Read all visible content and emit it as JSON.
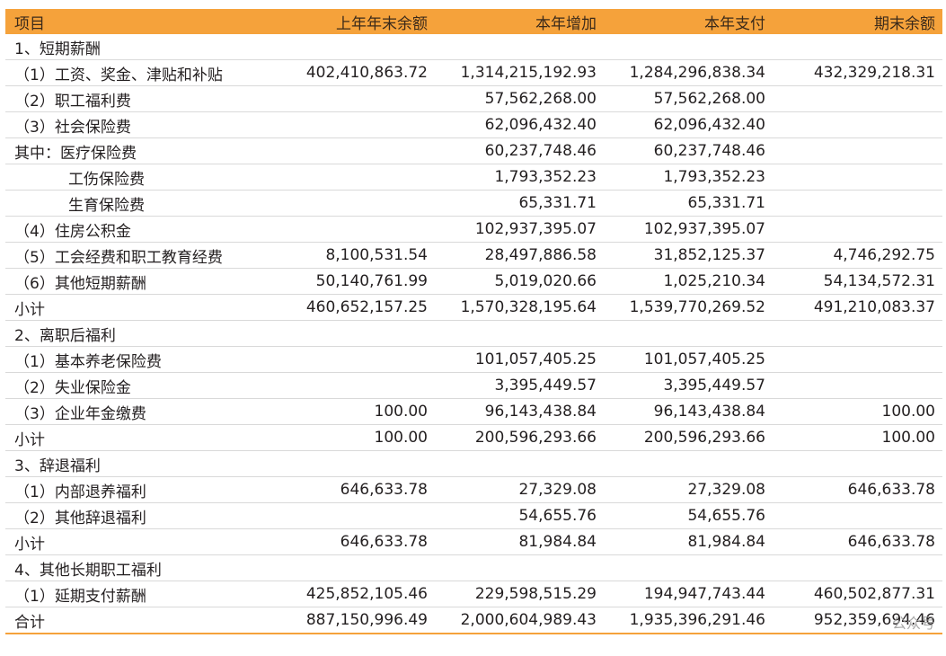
{
  "table": {
    "headers": [
      "项目",
      "上年年末余额",
      "本年增加",
      "本年支付",
      "期末余额"
    ],
    "rows": [
      {
        "label": "1、短期薪酬",
        "sub": false,
        "values": [
          "",
          "",
          "",
          ""
        ]
      },
      {
        "label": "（1）工资、奖金、津贴和补贴",
        "sub": false,
        "values": [
          "402,410,863.72",
          "1,314,215,192.93",
          "1,284,296,838.34",
          "432,329,218.31"
        ]
      },
      {
        "label": "（2）职工福利费",
        "sub": false,
        "values": [
          "",
          "57,562,268.00",
          "57,562,268.00",
          ""
        ]
      },
      {
        "label": "（3）社会保险费",
        "sub": false,
        "values": [
          "",
          "62,096,432.40",
          "62,096,432.40",
          ""
        ]
      },
      {
        "label": "其中：医疗保险费",
        "sub": false,
        "values": [
          "",
          "60,237,748.46",
          "60,237,748.46",
          ""
        ]
      },
      {
        "label": "工伤保险费",
        "sub": true,
        "values": [
          "",
          "1,793,352.23",
          "1,793,352.23",
          ""
        ]
      },
      {
        "label": "生育保险费",
        "sub": true,
        "values": [
          "",
          "65,331.71",
          "65,331.71",
          ""
        ]
      },
      {
        "label": "（4）住房公积金",
        "sub": false,
        "values": [
          "",
          "102,937,395.07",
          "102,937,395.07",
          ""
        ]
      },
      {
        "label": "（5）工会经费和职工教育经费",
        "sub": false,
        "values": [
          "8,100,531.54",
          "28,497,886.58",
          "31,852,125.37",
          "4,746,292.75"
        ]
      },
      {
        "label": "（6）其他短期薪酬",
        "sub": false,
        "values": [
          "50,140,761.99",
          "5,019,020.66",
          "1,025,210.34",
          "54,134,572.31"
        ]
      },
      {
        "label": "小计",
        "sub": false,
        "values": [
          "460,652,157.25",
          "1,570,328,195.64",
          "1,539,770,269.52",
          "491,210,083.37"
        ]
      },
      {
        "label": "2、离职后福利",
        "sub": false,
        "values": [
          "",
          "",
          "",
          ""
        ]
      },
      {
        "label": "（1）基本养老保险费",
        "sub": false,
        "values": [
          "",
          "101,057,405.25",
          "101,057,405.25",
          ""
        ]
      },
      {
        "label": "（2）失业保险金",
        "sub": false,
        "values": [
          "",
          "3,395,449.57",
          "3,395,449.57",
          ""
        ]
      },
      {
        "label": "（3）企业年金缴费",
        "sub": false,
        "values": [
          "100.00",
          "96,143,438.84",
          "96,143,438.84",
          "100.00"
        ]
      },
      {
        "label": "小计",
        "sub": false,
        "values": [
          "100.00",
          "200,596,293.66",
          "200,596,293.66",
          "100.00"
        ]
      },
      {
        "label": "3、辞退福利",
        "sub": false,
        "values": [
          "",
          "",
          "",
          ""
        ]
      },
      {
        "label": "（1）内部退养福利",
        "sub": false,
        "values": [
          "646,633.78",
          "27,329.08",
          "27,329.08",
          "646,633.78"
        ]
      },
      {
        "label": "（2）其他辞退福利",
        "sub": false,
        "values": [
          "",
          "54,655.76",
          "54,655.76",
          ""
        ]
      },
      {
        "label": "小计",
        "sub": false,
        "values": [
          "646,633.78",
          "81,984.84",
          "81,984.84",
          "646,633.78"
        ]
      },
      {
        "label": "4、其他长期职工福利",
        "sub": false,
        "values": [
          "",
          "",
          "",
          ""
        ]
      },
      {
        "label": "（1）延期支付薪酬",
        "sub": false,
        "values": [
          "425,852,105.46",
          "229,598,515.29",
          "194,947,743.44",
          "460,502,877.31"
        ]
      },
      {
        "label": "合计",
        "sub": false,
        "values": [
          "887,150,996.49",
          "2,000,604,989.43",
          "1,935,396,291.46",
          "952,359,694.46"
        ]
      }
    ]
  },
  "watermark": "公众号"
}
